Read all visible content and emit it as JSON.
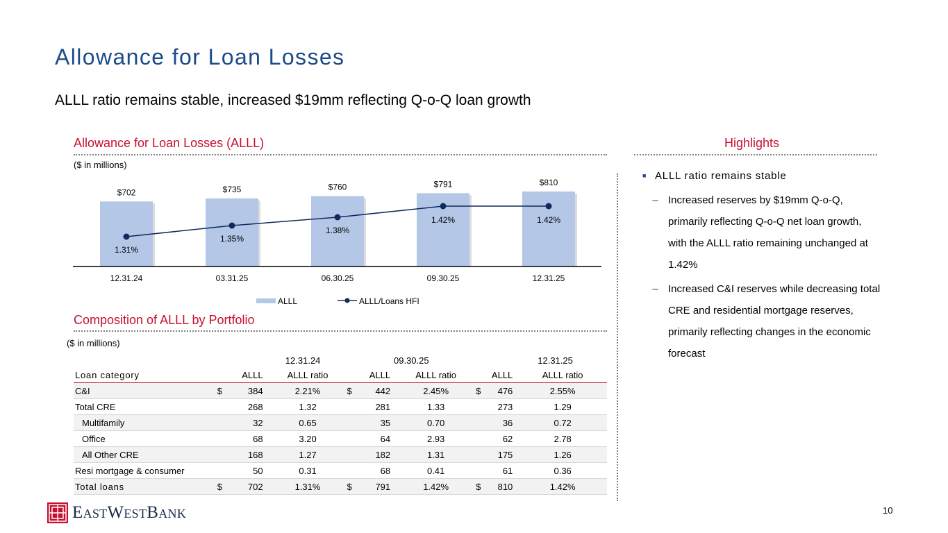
{
  "title": "Allowance for Loan Losses",
  "subtitle": "ALLL ratio remains stable, increased $19mm reflecting Q-o-Q loan growth",
  "chart_section": {
    "heading": "Allowance for Loan Losses (ALLL)",
    "units": "($ in millions)"
  },
  "chart_data": {
    "type": "bar",
    "categories": [
      "12.31.24",
      "03.31.25",
      "06.30.25",
      "09.30.25",
      "12.31.25"
    ],
    "series": [
      {
        "name": "ALLL",
        "kind": "bar",
        "values": [
          702,
          735,
          760,
          791,
          810
        ],
        "labels": [
          "$702",
          "$735",
          "$760",
          "$791",
          "$810"
        ],
        "color": "#b4c7e7"
      },
      {
        "name": "ALLL/Loans HFI",
        "kind": "line",
        "values": [
          1.31,
          1.35,
          1.38,
          1.42,
          1.42
        ],
        "labels": [
          "1.31%",
          "1.35%",
          "1.38%",
          "1.42%",
          "1.42%"
        ],
        "color": "#0f2a5c"
      }
    ],
    "legend": [
      "ALLL",
      "ALLL/Loans HFI"
    ],
    "legend_position": "bottom",
    "ylim_bar": [
      0,
      850
    ],
    "ylim_line": [
      0.9,
      1.6
    ],
    "title": "",
    "xlabel": "",
    "ylabel": ""
  },
  "table_section": {
    "heading": "Composition of ALLL by Portfolio",
    "units": "($ in millions)",
    "periods": [
      "12.31.24",
      "09.30.25",
      "12.31.25"
    ],
    "col_label": "Loan category",
    "col_alll": "ALLL",
    "col_ratio": "ALLL ratio",
    "rows": [
      {
        "label": "C&I",
        "indent": false,
        "cur": "$",
        "v1": "384",
        "r1": "2.21%",
        "v2": "442",
        "r2": "2.45%",
        "v3": "476",
        "r3": "2.55%"
      },
      {
        "label": "Total CRE",
        "indent": false,
        "cur": "",
        "v1": "268",
        "r1": "1.32",
        "v2": "281",
        "r2": "1.33",
        "v3": "273",
        "r3": "1.29"
      },
      {
        "label": "Multifamily",
        "indent": true,
        "cur": "",
        "v1": "32",
        "r1": "0.65",
        "v2": "35",
        "r2": "0.70",
        "v3": "36",
        "r3": "0.72"
      },
      {
        "label": "Office",
        "indent": true,
        "cur": "",
        "v1": "68",
        "r1": "3.20",
        "v2": "64",
        "r2": "2.93",
        "v3": "62",
        "r3": "2.78"
      },
      {
        "label": "All Other CRE",
        "indent": true,
        "cur": "",
        "v1": "168",
        "r1": "1.27",
        "v2": "182",
        "r2": "1.31",
        "v3": "175",
        "r3": "1.26"
      },
      {
        "label": "Resi mortgage & consumer",
        "indent": false,
        "cur": "",
        "v1": "50",
        "r1": "0.31",
        "v2": "68",
        "r2": "0.41",
        "v3": "61",
        "r3": "0.36"
      },
      {
        "label": "Total loans",
        "indent": false,
        "cur": "$",
        "v1": "702",
        "r1": "1.31%",
        "v2": "791",
        "r2": "1.42%",
        "v3": "810",
        "r3": "1.42%"
      }
    ]
  },
  "highlights": {
    "heading": "Highlights",
    "bullet": "ALLL ratio remains stable",
    "subpoints": [
      "Increased reserves by $19mm Q-o-Q, primarily reflecting Q-o-Q net loan growth, with the ALLL ratio remaining unchanged at 1.42%",
      "Increased C&I reserves while decreasing total CRE and residential mortgage reserves, primarily reflecting changes in the economic forecast"
    ]
  },
  "footer": {
    "logo_text": "EastWestBank",
    "page_number": "10"
  },
  "colors": {
    "title": "#1b4b8a",
    "section_heading": "#c8102e",
    "bar": "#b4c7e7",
    "line": "#0f2a5c"
  }
}
